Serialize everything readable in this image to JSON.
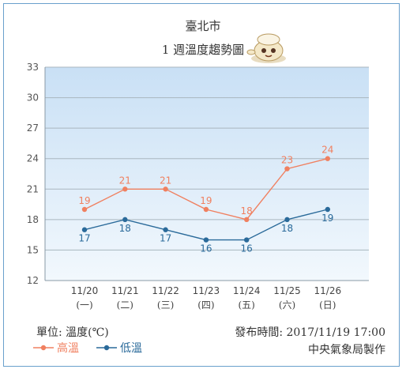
{
  "title": "臺北市",
  "subtitle": "1 週溫度趨勢圖",
  "unit_label": "單位: 溫度(℃)",
  "published_label": "發布時間: 2017/11/19 17:00",
  "credit": "中央氣象局製作",
  "colors": {
    "high": "#f08060",
    "low": "#2a6a9a",
    "plot_top": "#c9e0f5",
    "plot_bottom": "#f2f8fd",
    "grid": "#a9b6bf",
    "frame": "#6aa0cc"
  },
  "chart_data": {
    "type": "line",
    "title": "1 週溫度趨勢圖",
    "categories": [
      "11/20",
      "11/21",
      "11/22",
      "11/23",
      "11/24",
      "11/25",
      "11/26"
    ],
    "weekdays": [
      "(一)",
      "(二)",
      "(三)",
      "(四)",
      "(五)",
      "(六)",
      "(日)"
    ],
    "series": [
      {
        "name": "高溫",
        "values": [
          19,
          21,
          21,
          19,
          18,
          23,
          24
        ]
      },
      {
        "name": "低溫",
        "values": [
          17,
          18,
          17,
          16,
          16,
          18,
          19
        ]
      }
    ],
    "ylim": [
      12,
      33
    ],
    "yticks": [
      12,
      15,
      18,
      21,
      24,
      27,
      30,
      33
    ],
    "grid": true,
    "legend": "bottom-left"
  }
}
